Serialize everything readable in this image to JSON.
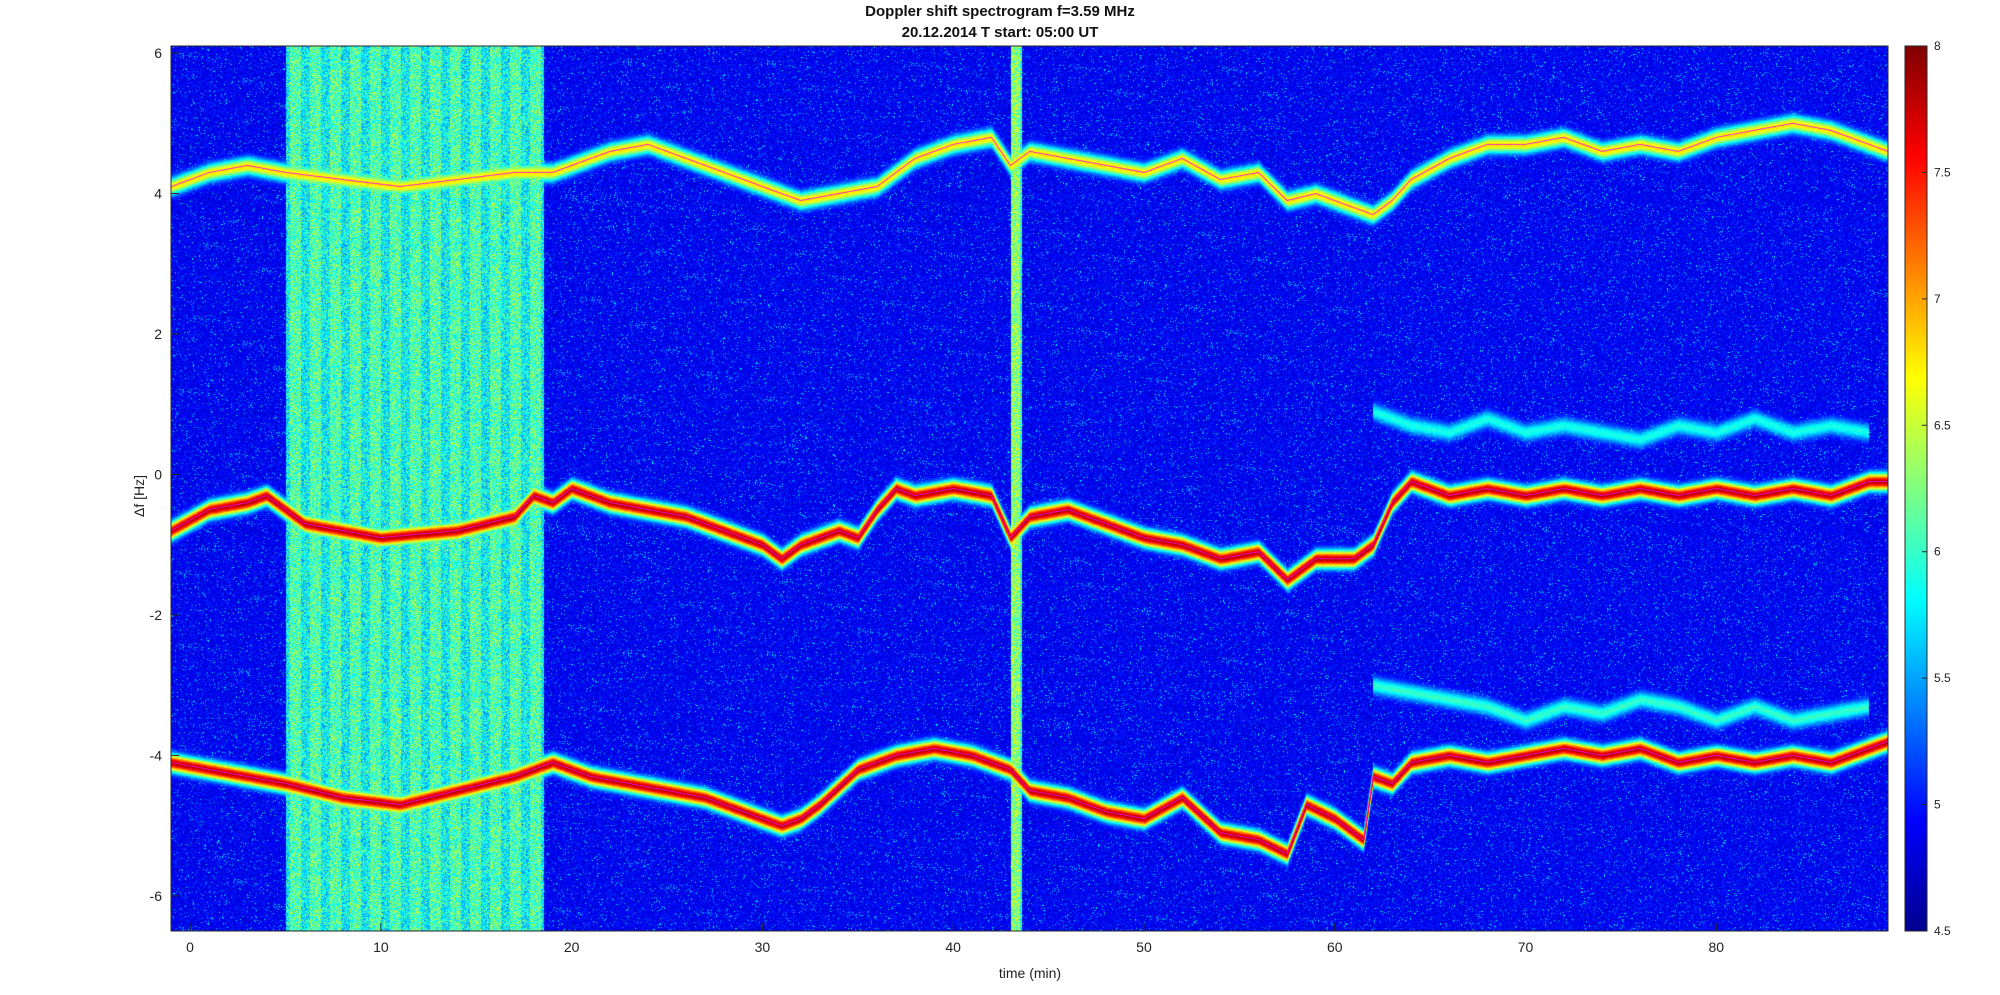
{
  "chart_data": {
    "type": "heatmap",
    "title": "Doppler shift spectrogram f=3.59 MHz",
    "subtitle": "20.12.2014   T start: 05:00 UT",
    "xlabel": "time (min)",
    "ylabel": "Δf [Hz]",
    "xlim": [
      -1,
      89
    ],
    "ylim": [
      -6.5,
      6.1
    ],
    "x_ticks": [
      0,
      10,
      20,
      30,
      40,
      50,
      60,
      70,
      80
    ],
    "y_ticks": [
      6,
      4,
      2,
      0,
      -2,
      -4,
      -6
    ],
    "colorbar": {
      "colormap": "jet",
      "range": [
        4.5,
        8
      ],
      "ticks": [
        8,
        7.5,
        7,
        6.5,
        6,
        5.5,
        5,
        4.5
      ]
    },
    "grid": false,
    "background_level": 4.8,
    "broadband_noise": [
      {
        "x_start": 5,
        "x_end": 18.5,
        "level": 6.1,
        "note": "vertical striped interference band"
      },
      {
        "x_start": 43,
        "x_end": 43.6,
        "level": 6.3,
        "note": "vertical interference line"
      }
    ],
    "series": [
      {
        "x": [
          -1,
          1,
          3,
          4,
          6,
          10,
          14,
          17,
          18,
          19,
          20,
          22,
          24,
          26,
          28,
          30,
          31,
          32,
          33,
          34,
          35,
          36,
          37,
          38,
          40,
          42,
          43,
          44,
          46,
          48,
          50,
          52,
          54,
          56,
          57.5,
          59,
          61,
          62,
          63,
          64,
          66,
          68,
          70,
          72,
          74,
          76,
          78,
          80,
          82,
          84,
          86,
          88,
          89
        ],
        "y": [
          -0.8,
          -0.5,
          -0.4,
          -0.3,
          -0.7,
          -0.9,
          -0.8,
          -0.6,
          -0.3,
          -0.4,
          -0.2,
          -0.4,
          -0.5,
          -0.6,
          -0.8,
          -1.0,
          -1.2,
          -1.0,
          -0.9,
          -0.8,
          -0.9,
          -0.5,
          -0.2,
          -0.3,
          -0.2,
          -0.3,
          -0.9,
          -0.6,
          -0.5,
          -0.7,
          -0.9,
          -1.0,
          -1.2,
          -1.1,
          -1.5,
          -1.2,
          -1.2,
          -1.0,
          -0.4,
          -0.1,
          -0.3,
          -0.2,
          -0.3,
          -0.2,
          -0.3,
          -0.2,
          -0.3,
          -0.2,
          -0.3,
          -0.2,
          -0.3,
          -0.1,
          -0.1
        ],
        "level": 7.8
      },
      {
        "x": [
          -1,
          1,
          3,
          5,
          8,
          11,
          14,
          17,
          19,
          21,
          23,
          25,
          27,
          29,
          31,
          32,
          33,
          35,
          37,
          39,
          41,
          43,
          44,
          46,
          48,
          50,
          52,
          54,
          56,
          57.5,
          58.5,
          60,
          61.5,
          62,
          63,
          64,
          66,
          68,
          70,
          72,
          74,
          76,
          78,
          80,
          82,
          84,
          86,
          88,
          89
        ],
        "y": [
          -4.1,
          -4.2,
          -4.3,
          -4.4,
          -4.6,
          -4.7,
          -4.5,
          -4.3,
          -4.1,
          -4.3,
          -4.4,
          -4.5,
          -4.6,
          -4.8,
          -5.0,
          -4.9,
          -4.7,
          -4.2,
          -4.0,
          -3.9,
          -4.0,
          -4.2,
          -4.5,
          -4.6,
          -4.8,
          -4.9,
          -4.6,
          -5.1,
          -5.2,
          -5.4,
          -4.7,
          -4.9,
          -5.2,
          -4.3,
          -4.4,
          -4.1,
          -4.0,
          -4.1,
          -4.0,
          -3.9,
          -4.0,
          -3.9,
          -4.1,
          -4.0,
          -4.1,
          -4.0,
          -4.1,
          -3.9,
          -3.8
        ],
        "level": 7.8
      },
      {
        "x": [
          -1,
          1,
          3,
          5,
          8,
          11,
          14,
          17,
          19,
          20,
          22,
          24,
          26,
          28,
          30,
          32,
          34,
          36,
          38,
          40,
          42,
          43,
          44,
          46,
          48,
          50,
          52,
          54,
          56,
          57.5,
          59,
          61,
          62,
          63,
          64,
          66,
          68,
          70,
          72,
          74,
          76,
          78,
          80,
          82,
          84,
          86,
          88,
          89
        ],
        "y": [
          4.1,
          4.3,
          4.4,
          4.3,
          4.2,
          4.1,
          4.2,
          4.3,
          4.3,
          4.4,
          4.6,
          4.7,
          4.5,
          4.3,
          4.1,
          3.9,
          4.0,
          4.1,
          4.5,
          4.7,
          4.8,
          4.4,
          4.6,
          4.5,
          4.4,
          4.3,
          4.5,
          4.2,
          4.3,
          3.9,
          4.0,
          3.8,
          3.7,
          3.9,
          4.2,
          4.5,
          4.7,
          4.7,
          4.8,
          4.6,
          4.7,
          4.6,
          4.8,
          4.9,
          5.0,
          4.9,
          4.7,
          4.6
        ],
        "level": 6.8
      },
      {
        "x": [
          62,
          64,
          66,
          68,
          70,
          72,
          74,
          76,
          78,
          80,
          82,
          84,
          86,
          88
        ],
        "y": [
          -3.0,
          -3.1,
          -3.2,
          -3.3,
          -3.5,
          -3.3,
          -3.4,
          -3.2,
          -3.3,
          -3.5,
          -3.3,
          -3.5,
          -3.4,
          -3.3
        ],
        "level": 6.0
      },
      {
        "x": [
          62,
          64,
          66,
          68,
          70,
          72,
          74,
          76,
          78,
          80,
          82,
          84,
          86,
          88
        ],
        "y": [
          0.9,
          0.7,
          0.6,
          0.8,
          0.6,
          0.7,
          0.6,
          0.5,
          0.7,
          0.6,
          0.8,
          0.6,
          0.7,
          0.6
        ],
        "level": 5.9
      }
    ]
  }
}
